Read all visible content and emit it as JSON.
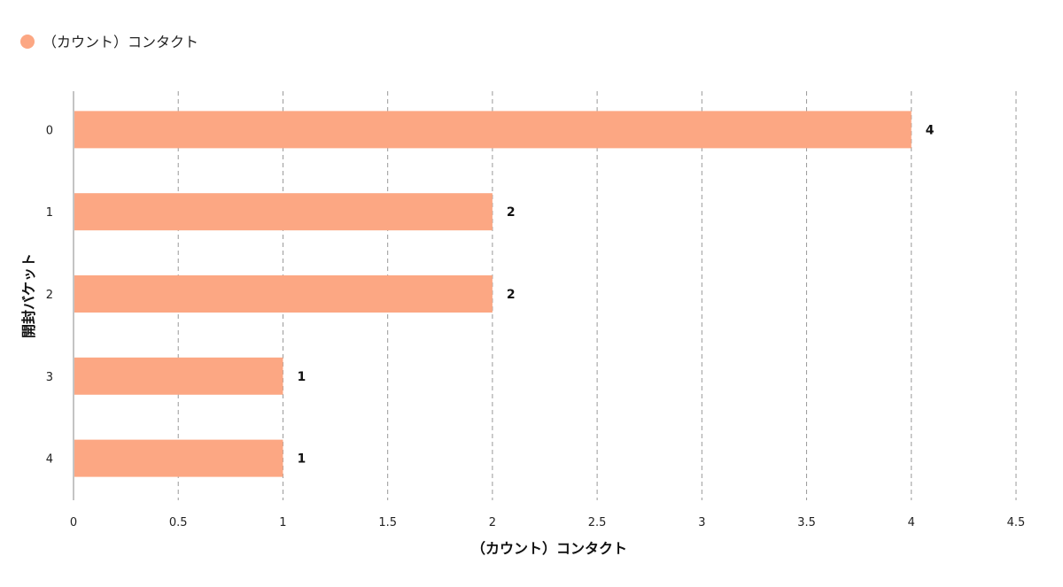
{
  "chart_data": {
    "type": "bar",
    "orientation": "horizontal",
    "categories": [
      "0",
      "1",
      "2",
      "3",
      "4"
    ],
    "series": [
      {
        "name": "（カウント）コンタクト",
        "values": [
          4,
          2,
          2,
          1,
          1
        ],
        "color": "#FCA783"
      }
    ],
    "xlabel": "（カウント）コンタクト",
    "ylabel": "開封バケット",
    "xlim": [
      0,
      4.5
    ],
    "xticks": [
      "0",
      "0.5",
      "1",
      "1.5",
      "2",
      "2.5",
      "3",
      "3.5",
      "4",
      "4.5"
    ],
    "grid": "vertical dashed",
    "legend": "top-left",
    "data_labels": true
  }
}
